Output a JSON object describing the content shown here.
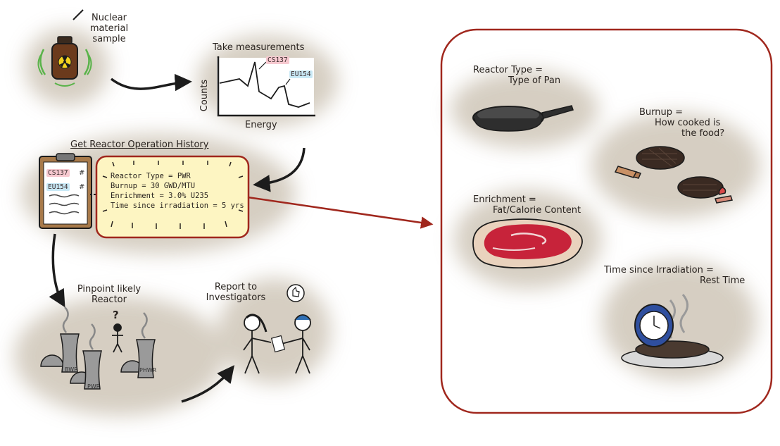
{
  "workflow": {
    "sample_label": [
      "Nuclear",
      "material",
      "sample"
    ],
    "measure_title": "Take measurements",
    "axis_y": "Counts",
    "axis_x": "Energy",
    "peak_1": "CS137",
    "peak_2": "EU154",
    "history_title": "Get Reactor Operation History",
    "clipboard_rows": [
      {
        "label": "CS137",
        "value": "#"
      },
      {
        "label": "EU154",
        "value": "#"
      }
    ],
    "operation_history": [
      "Reactor Type = PWR",
      "Burnup = 30 GWD/MTU",
      "Enrichment = 3.0% U235",
      "Time since irradiation = 5 yrs"
    ],
    "pinpoint_label": [
      "Pinpoint likely",
      "Reactor"
    ],
    "question_mark": "?",
    "reactors": [
      "BWR",
      "PHWR",
      "PWR"
    ],
    "report_label": [
      "Report to",
      "Investigators"
    ]
  },
  "analogy": {
    "reactor_type": [
      "Reactor Type =",
      "Type of Pan"
    ],
    "burnup": [
      "Burnup =",
      "How cooked is",
      "the food?"
    ],
    "enrichment": [
      "Enrichment =",
      "Fat/Calorie Content"
    ],
    "time_since": [
      "Time since Irradiation =",
      "Rest Time"
    ]
  },
  "colors": {
    "accent_red": "#a0271d",
    "cloud": "#cfc6b8",
    "highlight": "#fdf5c2",
    "cs_tag": "#f7c9d0",
    "eu_tag": "#c9e9f6",
    "ink": "#2a2420"
  }
}
